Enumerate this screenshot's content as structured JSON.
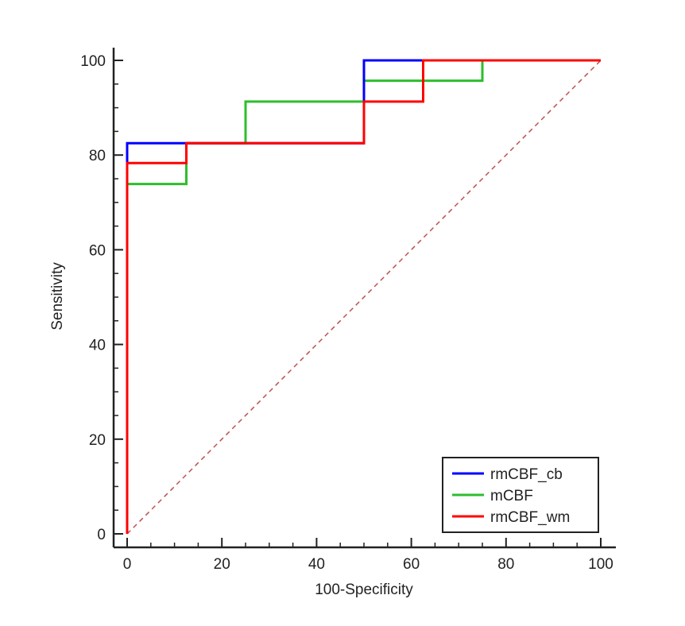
{
  "chart_data": {
    "type": "line",
    "title": "",
    "xlabel": "100-Specificity",
    "ylabel": "Sensitivity",
    "xlim": [
      0,
      100
    ],
    "ylim": [
      0,
      100
    ],
    "xticks": [
      "0",
      "20",
      "40",
      "60",
      "80",
      "100"
    ],
    "yticks": [
      "0",
      "20",
      "40",
      "60",
      "80",
      "100"
    ],
    "grid": false,
    "legend_position": "bottom-right",
    "reference_line": {
      "style": "dashed",
      "color": "#c0504d",
      "from": [
        0,
        0
      ],
      "to": [
        100,
        100
      ]
    },
    "series": [
      {
        "name": "rmCBF_cb",
        "color": "#0000ff",
        "x": [
          0,
          0,
          12.5,
          12.5,
          50,
          50,
          62.5,
          62.5,
          100
        ],
        "y": [
          0,
          82.5,
          82.5,
          82.5,
          82.5,
          100,
          100,
          100,
          100
        ]
      },
      {
        "name": "mCBF",
        "color": "#2dbe2d",
        "x": [
          0,
          0,
          12.5,
          12.5,
          25,
          25,
          50,
          50,
          75,
          75,
          100
        ],
        "y": [
          0,
          73.9,
          73.9,
          82.5,
          82.5,
          91.3,
          91.3,
          95.7,
          95.7,
          100,
          100
        ]
      },
      {
        "name": "rmCBF_wm",
        "color": "#ff0000",
        "x": [
          0,
          0,
          12.5,
          12.5,
          50,
          50,
          62.5,
          62.5,
          100
        ],
        "y": [
          0,
          78.3,
          78.3,
          82.5,
          82.5,
          91.3,
          91.3,
          100,
          100
        ]
      }
    ]
  }
}
